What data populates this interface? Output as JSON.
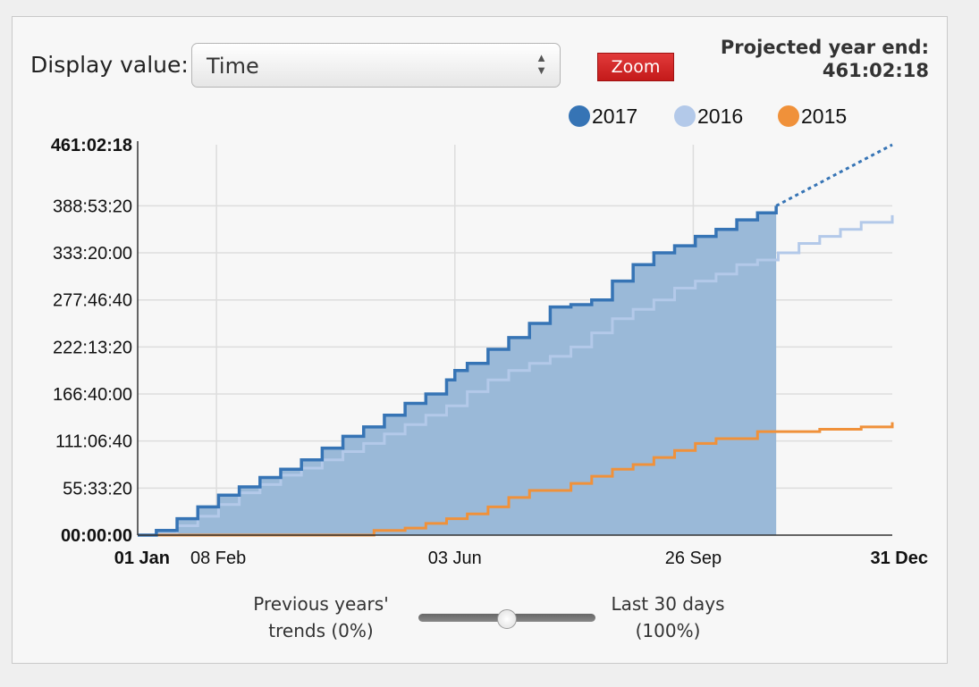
{
  "controls": {
    "display_label": "Display value:",
    "display_value": "Time",
    "zoom_label": "Zoom"
  },
  "projection": {
    "label": "Projected year end:",
    "value": "461:02:18"
  },
  "slider": {
    "left_label_line1": "Previous years'",
    "left_label_line2": "trends (0%)",
    "right_label_line1": "Last 30 days",
    "right_label_line2": "(100%)",
    "value": 0.5
  },
  "chart_data": {
    "type": "area",
    "title": "",
    "xlabel": "",
    "ylabel": "",
    "ylim_seconds": [
      0,
      1659738
    ],
    "y_ticks": [
      {
        "label": "00:00:00",
        "seconds": 0,
        "bold": true
      },
      {
        "label": "55:33:20",
        "seconds": 200000
      },
      {
        "label": "111:06:40",
        "seconds": 400000
      },
      {
        "label": "166:40:00",
        "seconds": 600000
      },
      {
        "label": "222:13:20",
        "seconds": 800000
      },
      {
        "label": "277:46:40",
        "seconds": 1000000
      },
      {
        "label": "333:20:00",
        "seconds": 1200000
      },
      {
        "label": "388:53:20",
        "seconds": 1400000
      },
      {
        "label": "461:02:18",
        "seconds": 1659738,
        "bold": true
      }
    ],
    "x_ticks": [
      {
        "label": "01 Jan",
        "day": 1,
        "bold": true
      },
      {
        "label": "08 Feb",
        "day": 39
      },
      {
        "label": "03 Jun",
        "day": 154
      },
      {
        "label": "26 Sep",
        "day": 269
      },
      {
        "label": "31 Dec",
        "day": 365,
        "bold": true
      }
    ],
    "x_gridlines_days": [
      39,
      154,
      269
    ],
    "legend_position": "top-right",
    "series": [
      {
        "name": "2017",
        "color": "#3674b5",
        "fill": "#9ab9d8",
        "filled": true,
        "points": [
          [
            1,
            0
          ],
          [
            10,
            20000
          ],
          [
            20,
            70000
          ],
          [
            30,
            120000
          ],
          [
            40,
            170000
          ],
          [
            50,
            205000
          ],
          [
            60,
            245000
          ],
          [
            70,
            280000
          ],
          [
            80,
            320000
          ],
          [
            90,
            370000
          ],
          [
            100,
            420000
          ],
          [
            110,
            460000
          ],
          [
            120,
            510000
          ],
          [
            130,
            560000
          ],
          [
            140,
            600000
          ],
          [
            150,
            660000
          ],
          [
            154,
            700000
          ],
          [
            160,
            730000
          ],
          [
            170,
            790000
          ],
          [
            180,
            840000
          ],
          [
            190,
            900000
          ],
          [
            200,
            970000
          ],
          [
            210,
            980000
          ],
          [
            220,
            1000000
          ],
          [
            230,
            1080000
          ],
          [
            240,
            1150000
          ],
          [
            250,
            1200000
          ],
          [
            260,
            1230000
          ],
          [
            270,
            1270000
          ],
          [
            280,
            1300000
          ],
          [
            290,
            1340000
          ],
          [
            300,
            1370000
          ],
          [
            309,
            1400000
          ]
        ]
      },
      {
        "name": "2017 projection",
        "color": "#3674b5",
        "dashed": true,
        "points": [
          [
            309,
            1400000
          ],
          [
            365,
            1659738
          ]
        ]
      },
      {
        "name": "2016",
        "color": "#b3c9e9",
        "points": [
          [
            1,
            0
          ],
          [
            10,
            5000
          ],
          [
            20,
            40000
          ],
          [
            30,
            80000
          ],
          [
            40,
            130000
          ],
          [
            50,
            180000
          ],
          [
            60,
            215000
          ],
          [
            70,
            255000
          ],
          [
            80,
            285000
          ],
          [
            90,
            320000
          ],
          [
            100,
            355000
          ],
          [
            110,
            390000
          ],
          [
            120,
            430000
          ],
          [
            130,
            470000
          ],
          [
            140,
            510000
          ],
          [
            150,
            550000
          ],
          [
            160,
            610000
          ],
          [
            170,
            660000
          ],
          [
            180,
            700000
          ],
          [
            190,
            730000
          ],
          [
            200,
            760000
          ],
          [
            210,
            800000
          ],
          [
            220,
            860000
          ],
          [
            230,
            920000
          ],
          [
            240,
            960000
          ],
          [
            250,
            1000000
          ],
          [
            260,
            1050000
          ],
          [
            270,
            1080000
          ],
          [
            280,
            1110000
          ],
          [
            290,
            1150000
          ],
          [
            300,
            1170000
          ],
          [
            310,
            1200000
          ],
          [
            320,
            1240000
          ],
          [
            330,
            1270000
          ],
          [
            340,
            1300000
          ],
          [
            350,
            1330000
          ],
          [
            365,
            1360000
          ]
        ]
      },
      {
        "name": "2015",
        "color": "#f0913a",
        "points": [
          [
            1,
            0
          ],
          [
            110,
            0
          ],
          [
            115,
            20000
          ],
          [
            130,
            30000
          ],
          [
            140,
            50000
          ],
          [
            150,
            70000
          ],
          [
            160,
            90000
          ],
          [
            170,
            120000
          ],
          [
            180,
            160000
          ],
          [
            190,
            190000
          ],
          [
            200,
            190000
          ],
          [
            210,
            220000
          ],
          [
            220,
            250000
          ],
          [
            230,
            280000
          ],
          [
            240,
            300000
          ],
          [
            250,
            330000
          ],
          [
            260,
            360000
          ],
          [
            270,
            390000
          ],
          [
            280,
            410000
          ],
          [
            290,
            410000
          ],
          [
            300,
            440000
          ],
          [
            310,
            440000
          ],
          [
            320,
            440000
          ],
          [
            330,
            450000
          ],
          [
            340,
            450000
          ],
          [
            350,
            460000
          ],
          [
            365,
            480000
          ]
        ]
      }
    ]
  }
}
